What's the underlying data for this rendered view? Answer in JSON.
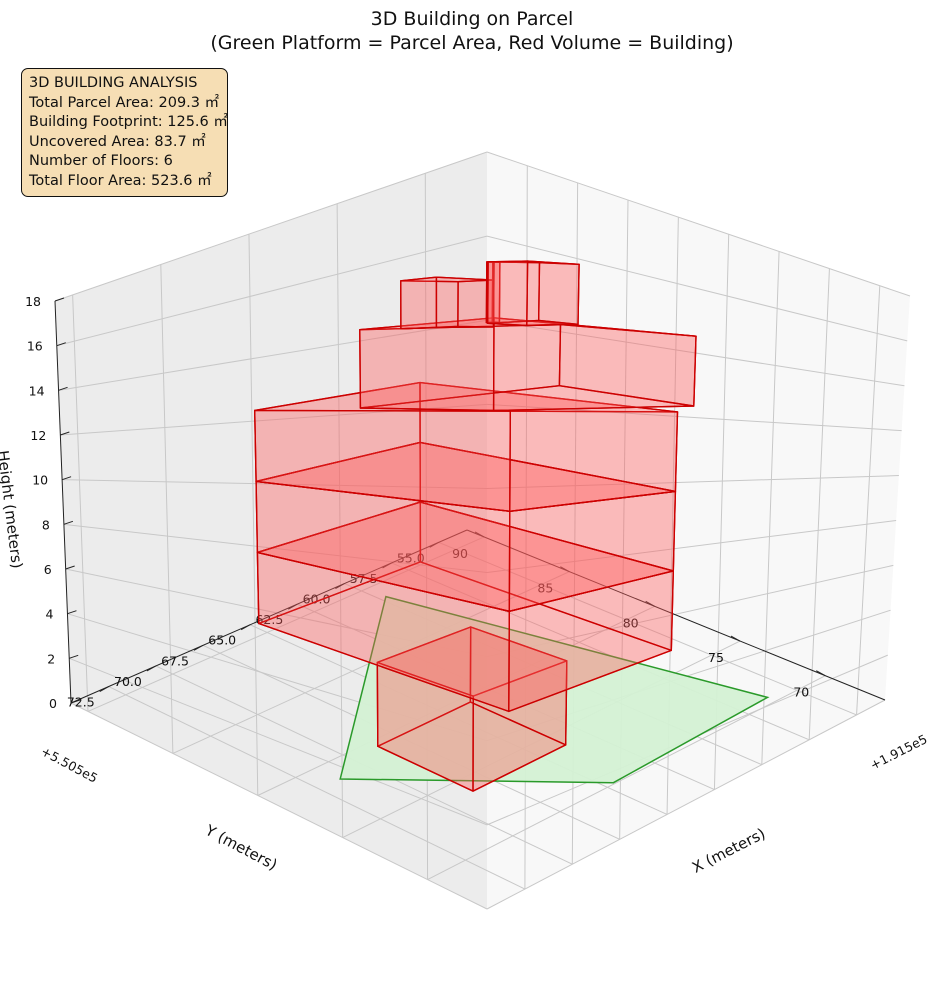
{
  "title": {
    "line1": "3D Building on Parcel",
    "line2": "(Green Platform = Parcel Area, Red Volume = Building)"
  },
  "info_box": {
    "heading": "3D BUILDING ANALYSIS",
    "lines": [
      "Total Parcel Area: 209.3 ㎡",
      "Building Footprint: 125.6 ㎡",
      "Uncovered Area: 83.7 ㎡",
      "Number of Floors: 6",
      "Total Floor Area: 523.6 ㎡"
    ]
  },
  "chart_data": {
    "type": "3d-volume",
    "xlabel": "X (meters)",
    "ylabel": "Y (meters)",
    "zlabel": "Height (meters)",
    "x_offset_label": "+1.915e5",
    "y_offset_label": "+5.505e5",
    "x_ticks": [
      "55.0",
      "57.5",
      "60.0",
      "62.5",
      "65.0",
      "67.5",
      "70.0",
      "72.5"
    ],
    "y_ticks": [
      "70",
      "75",
      "80",
      "85",
      "90"
    ],
    "z_ticks": [
      "0",
      "2",
      "4",
      "6",
      "8",
      "10",
      "12",
      "14",
      "16",
      "18"
    ],
    "xlim": [
      53.5,
      74.5
    ],
    "ylim": [
      66.5,
      91
    ],
    "zlim": [
      0,
      18
    ],
    "colors": {
      "parcel_fill": "#d4f1d4",
      "parcel_edge": "#2a9a2a",
      "building_fill": "#ff5a5a",
      "building_edge": "#cc0000",
      "pane": "#f2f2f2",
      "grid": "#c8c8c8",
      "infobox_bg": "#f6deb4"
    },
    "parcel": {
      "polygon": [
        [
          59.7,
          88.9
        ],
        [
          56.1,
          70.5
        ],
        [
          64.6,
          70.1
        ],
        [
          71.4,
          78.6
        ]
      ],
      "z": 0
    },
    "boxes": [
      {
        "x": [
          63.7,
          68.6
        ],
        "y": [
          73.9,
          79.5
        ],
        "z": [
          0,
          3
        ]
      },
      {
        "x": [
          60.3,
          68.8
        ],
        "y": [
          71.6,
          86.2
        ],
        "z": [
          3,
          6
        ]
      },
      {
        "x": [
          60.3,
          68.8
        ],
        "y": [
          71.6,
          86.2
        ],
        "z": [
          6,
          9
        ]
      },
      {
        "x": [
          60.3,
          68.8
        ],
        "y": [
          71.6,
          86.2
        ],
        "z": [
          9,
          12
        ]
      },
      {
        "x": [
          57.4,
          67.6
        ],
        "y": [
          73.9,
          81.5
        ],
        "z": [
          12,
          15
        ]
      },
      {
        "x": [
          61.8,
          64.7
        ],
        "y": [
          80.4,
          82.4
        ],
        "z": [
          15,
          17
        ]
      },
      {
        "x": [
          56.6,
          59.2
        ],
        "y": [
          81.4,
          83.6
        ],
        "z": [
          15,
          18
        ]
      },
      {
        "x": [
          58.6,
          58.9
        ],
        "y": [
          83.6,
          84.0
        ],
        "z": [
          15,
          18
        ]
      }
    ]
  }
}
